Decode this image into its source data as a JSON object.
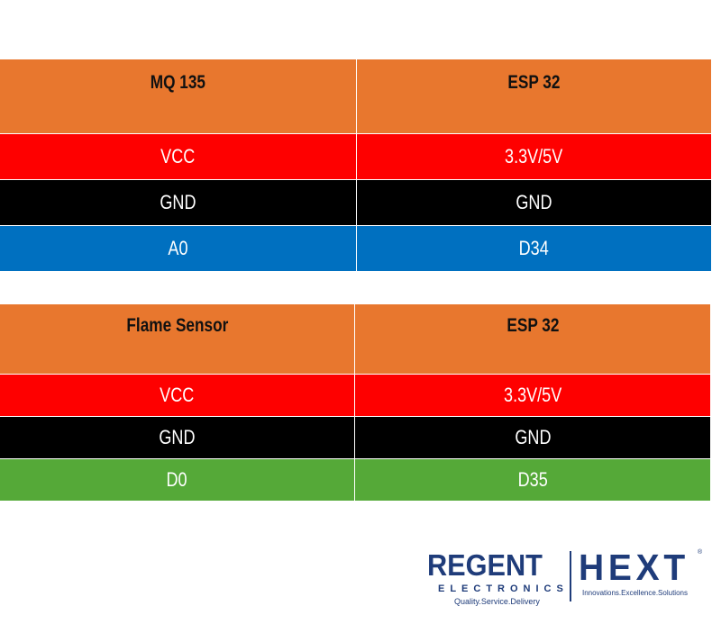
{
  "tables": [
    {
      "header": [
        "MQ 135",
        "ESP 32"
      ],
      "rows": [
        [
          "VCC",
          "3.3V/5V"
        ],
        [
          "GND",
          "GND"
        ],
        [
          "A0",
          "D34"
        ]
      ]
    },
    {
      "header": [
        "Flame Sensor",
        "ESP 32"
      ],
      "rows": [
        [
          "VCC",
          "3.3V/5V"
        ],
        [
          "GND",
          "GND"
        ],
        [
          "D0",
          "D35"
        ]
      ]
    }
  ],
  "logo": {
    "regent_name": "REGENT",
    "regent_sub": "ELECTRONICS",
    "regent_tagline": "Quality.Service.Delivery",
    "hext_name": "HEXT",
    "hext_mark": "®",
    "hext_tagline": "Innovations.Excellence.Solutions"
  },
  "colors": {
    "header": "#e8772e",
    "vcc": "#fe0000",
    "gnd": "#000000",
    "analog": "#0070c0",
    "digital": "#55a938",
    "brand": "#1f3c7a"
  }
}
